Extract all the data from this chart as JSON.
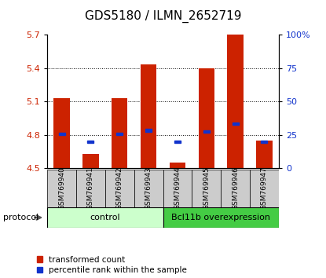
{
  "title": "GDS5180 / ILMN_2652719",
  "samples": [
    "GSM769940",
    "GSM769941",
    "GSM769942",
    "GSM769943",
    "GSM769944",
    "GSM769945",
    "GSM769946",
    "GSM769947"
  ],
  "red_values": [
    5.13,
    4.63,
    5.13,
    5.43,
    4.55,
    5.4,
    5.7,
    4.75
  ],
  "blue_values": [
    4.81,
    4.74,
    4.81,
    4.84,
    4.74,
    4.83,
    4.9,
    4.74
  ],
  "ylim_left": [
    4.5,
    5.7
  ],
  "ylim_right": [
    0,
    100
  ],
  "yticks_left": [
    4.5,
    4.8,
    5.1,
    5.4,
    5.7
  ],
  "yticks_right": [
    0,
    25,
    50,
    75,
    100
  ],
  "ytick_labels_right": [
    "0",
    "25",
    "50",
    "75",
    "100%"
  ],
  "bar_bottom": 4.5,
  "bar_width": 0.55,
  "red_color": "#cc2200",
  "blue_color": "#1133cc",
  "group1_label": "control",
  "group2_label": "Bcl11b overexpression",
  "group1_color": "#ccffcc",
  "group2_color": "#44cc44",
  "protocol_label": "protocol",
  "legend_red": "transformed count",
  "legend_blue": "percentile rank within the sample",
  "sample_bg": "#cccccc",
  "title_fontsize": 11,
  "tick_fontsize": 8,
  "label_fontsize": 8
}
